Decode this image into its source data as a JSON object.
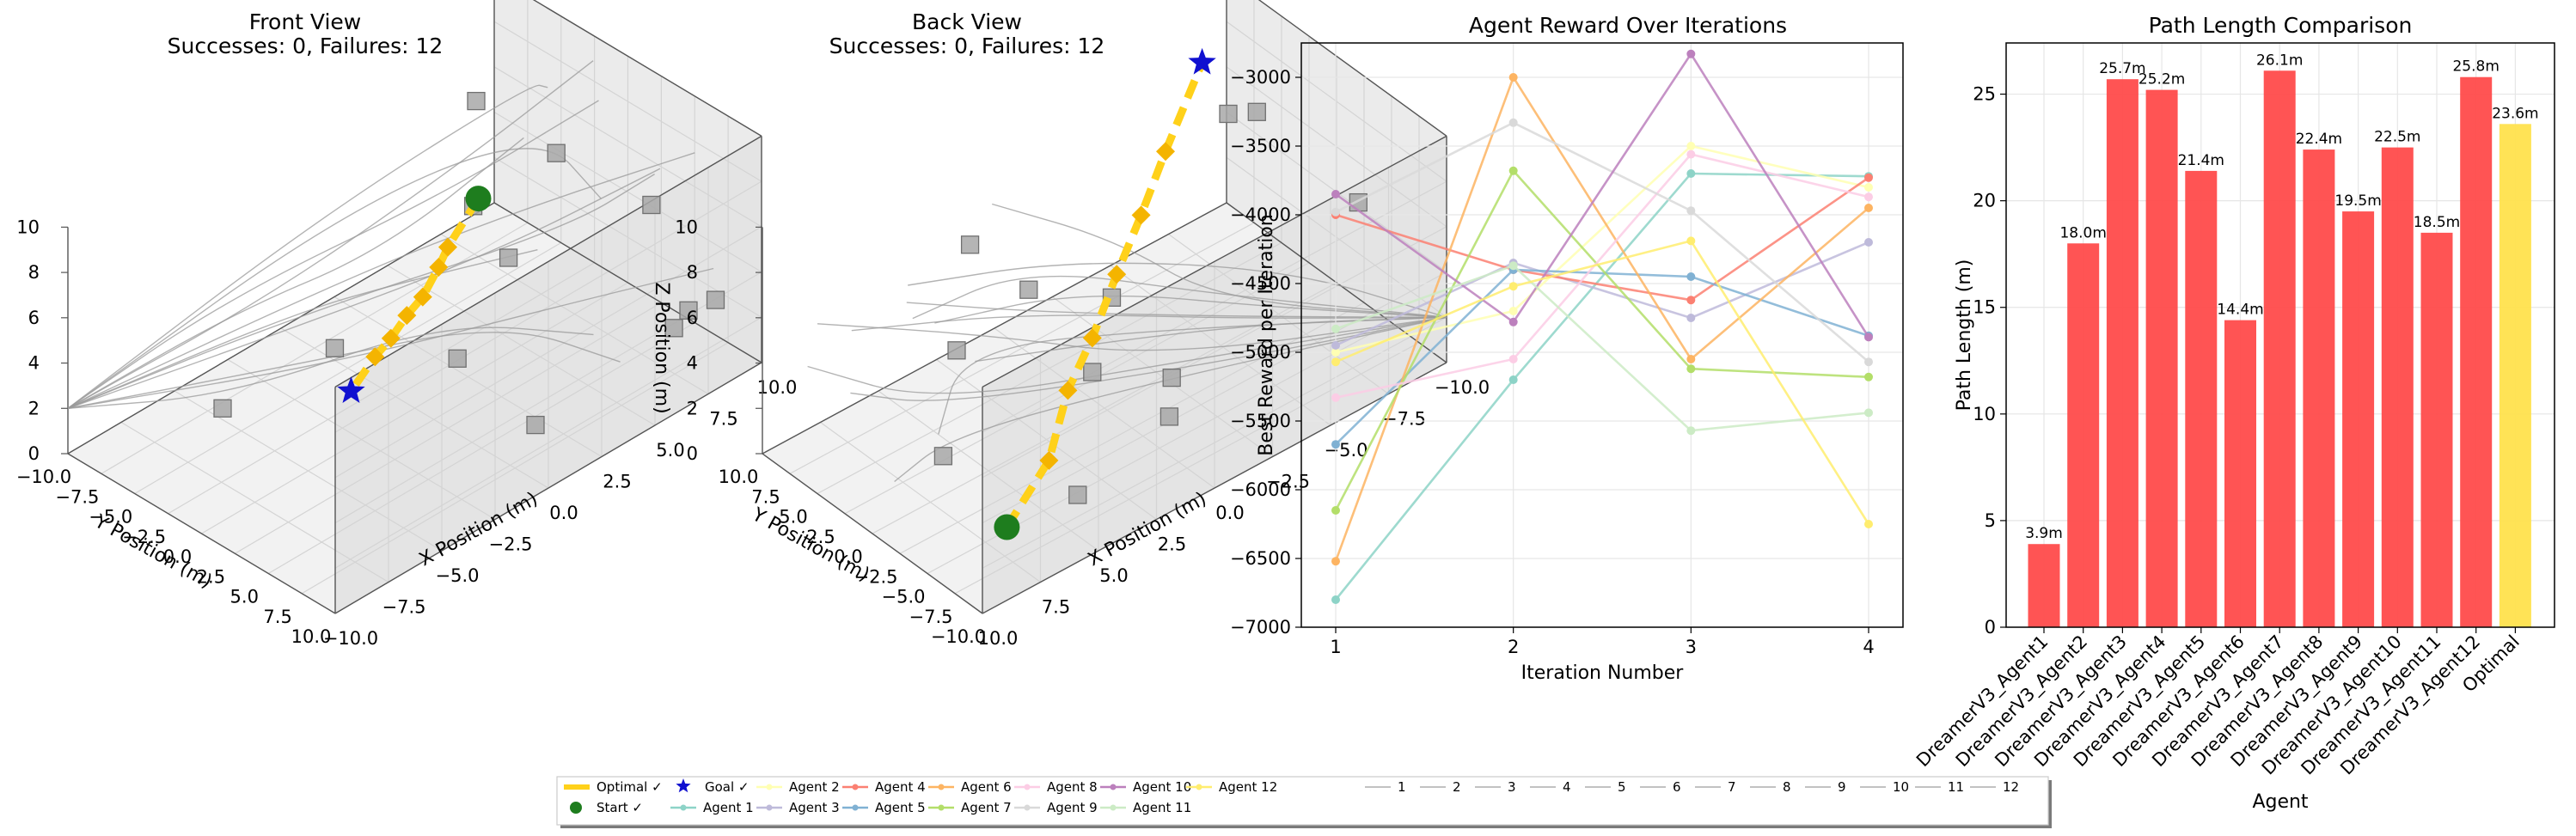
{
  "colors": {
    "optimal": "#FFD11A",
    "start": "#1E7D1E",
    "goal": "#1010D0",
    "bar_agent": "#FF4B4B",
    "bar_optimal": "#FFE14D",
    "obstacle": "#A8A8A8",
    "path_gray": "#9A9A9A",
    "series": [
      "#8DD3C7",
      "#FFFFB3",
      "#BEBADA",
      "#FB8072",
      "#80B1D3",
      "#FDB462",
      "#B3DE69",
      "#FCCDE5",
      "#D9D9D9",
      "#BC80BD",
      "#CCEBC5",
      "#FFED6F"
    ]
  },
  "panels3d": {
    "front": {
      "title_line1": "Front View",
      "title_line2": "Successes: 0, Failures: 12",
      "xaxis_label": "X Position (m)",
      "yaxis_label": "Y Position (m)",
      "zaxis_label": "",
      "x_ticks": [
        "−10.0",
        "−7.5",
        "−5.0",
        "−2.5",
        "0.0",
        "2.5",
        "5.0",
        "7.5",
        "10.0"
      ],
      "y_ticks": [
        "−10.0",
        "−7.5",
        "−5.0",
        "−2.5",
        "0.0",
        "2.5",
        "5.0",
        "7.5",
        "10.0"
      ],
      "z_ticks": [
        "0",
        "2",
        "4",
        "6",
        "8",
        "10"
      ]
    },
    "back": {
      "title_line1": "Back View",
      "title_line2": "Successes: 0, Failures: 12",
      "xaxis_label": "X Position (m)",
      "yaxis_label": "Y Position (m)",
      "zaxis_label": "Z Position (m)",
      "x_ticks": [
        "10.0",
        "7.5",
        "5.0",
        "2.5",
        "0.0",
        "−2.5",
        "−5.0",
        "−7.5",
        "−10.0"
      ],
      "y_ticks": [
        "10.0",
        "7.5",
        "5.0",
        "2.5",
        "0.0",
        "−2.5",
        "−5.0",
        "−7.5",
        "−10.0"
      ],
      "z_ticks": [
        "0",
        "2",
        "4",
        "6",
        "8",
        "10"
      ]
    }
  },
  "chart_data": [
    {
      "type": "scatter",
      "view": "front",
      "title": "Front View\nSuccesses: 0, Failures: 12",
      "xlabel": "X Position (m)",
      "ylabel": "Y Position (m)",
      "xlim": [
        -10,
        10
      ],
      "ylim": [
        -10,
        10
      ],
      "zlim": [
        0,
        10
      ],
      "start": [
        -8,
        -8,
        2
      ],
      "goal": [
        8,
        8,
        8
      ],
      "optimal_waypoints": [
        [
          -8,
          -8,
          2
        ],
        [
          -5,
          -5.5,
          2.4
        ],
        [
          -3,
          -3,
          3.5
        ],
        [
          -1,
          -1,
          4
        ],
        [
          1,
          1,
          5
        ],
        [
          3,
          3,
          5.8
        ],
        [
          5,
          5,
          6.8
        ],
        [
          8,
          8,
          8
        ]
      ]
    },
    {
      "type": "scatter",
      "view": "back",
      "title": "Back View\nSuccesses: 0, Failures: 12",
      "xlabel": "X Position (m)",
      "ylabel": "Y Position (m)",
      "zlabel": "Z Position (m)",
      "xlim": [
        -10,
        10
      ],
      "ylim": [
        -10,
        10
      ],
      "zlim": [
        0,
        10
      ]
    },
    {
      "type": "line",
      "title": "Agent Reward Over Iterations",
      "xlabel": "Iteration Number",
      "ylabel": "Best Reward per Iteration",
      "x": [
        1,
        2,
        3,
        4
      ],
      "x_ticks": [
        "1",
        "2",
        "3",
        "4"
      ],
      "ylim": [
        -7000,
        -2750
      ],
      "y_ticks": [
        -7000,
        -6500,
        -6000,
        -5500,
        -5000,
        -4500,
        -4000,
        -3500,
        -3000
      ],
      "y_tick_labels": [
        "−7000",
        "−6500",
        "−6000",
        "−5500",
        "−5000",
        "−4500",
        "−4000",
        "−3500",
        "−3000"
      ],
      "grid": true,
      "series": [
        {
          "name": "Agent 1",
          "values": [
            -6800,
            -5200,
            -3700,
            -3720
          ]
        },
        {
          "name": "Agent 2",
          "values": [
            -5000,
            -4700,
            -3500,
            -3800
          ]
        },
        {
          "name": "Agent 3",
          "values": [
            -4950,
            -4350,
            -4750,
            -4200
          ]
        },
        {
          "name": "Agent 4",
          "values": [
            -4000,
            -4400,
            -4620,
            -3730
          ]
        },
        {
          "name": "Agent 5",
          "values": [
            -5670,
            -4400,
            -4450,
            -4880
          ]
        },
        {
          "name": "Agent 6",
          "values": [
            -6520,
            -3000,
            -5050,
            -3950
          ]
        },
        {
          "name": "Agent 7",
          "values": [
            -6150,
            -3680,
            -5120,
            -5180
          ]
        },
        {
          "name": "Agent 8",
          "values": [
            -5330,
            -5050,
            -3560,
            -3870
          ]
        },
        {
          "name": "Agent 9",
          "values": [
            -3980,
            -3330,
            -3970,
            -5070
          ]
        },
        {
          "name": "Agent 10",
          "values": [
            -3850,
            -4780,
            -2830,
            -4890
          ]
        },
        {
          "name": "Agent 11",
          "values": [
            -4830,
            -4370,
            -5570,
            -5440
          ]
        },
        {
          "name": "Agent 12",
          "values": [
            -5070,
            -4520,
            -4190,
            -6250
          ]
        }
      ]
    },
    {
      "type": "bar",
      "title": "Path Length Comparison",
      "xlabel": "Agent",
      "ylabel": "Path Length (m)",
      "ylim": [
        0,
        27.4
      ],
      "y_ticks": [
        0,
        5,
        10,
        15,
        20,
        25
      ],
      "grid": true,
      "categories": [
        "DreamerV3_Agent1",
        "DreamerV3_Agent2",
        "DreamerV3_Agent3",
        "DreamerV3_Agent4",
        "DreamerV3_Agent5",
        "DreamerV3_Agent6",
        "DreamerV3_Agent7",
        "DreamerV3_Agent8",
        "DreamerV3_Agent9",
        "DreamerV3_Agent10",
        "DreamerV3_Agent11",
        "DreamerV3_Agent12",
        "Optimal"
      ],
      "values": [
        3.9,
        18.0,
        25.7,
        25.2,
        21.4,
        14.4,
        26.1,
        22.4,
        19.5,
        22.5,
        18.5,
        25.8,
        23.6
      ],
      "data_labels": [
        "3.9m",
        "18.0m",
        "25.7m",
        "25.2m",
        "21.4m",
        "14.4m",
        "26.1m",
        "22.4m",
        "19.5m",
        "22.5m",
        "18.5m",
        "25.8m",
        "23.6m"
      ]
    }
  ],
  "legend": {
    "optimal_label": "Optimal ✓",
    "start_label": "Start ✓",
    "goal_label": "Goal ✓",
    "agent_labels": [
      "Agent 1",
      "Agent 2",
      "Agent 3",
      "Agent 4",
      "Agent 5",
      "Agent 6",
      "Agent 7",
      "Agent 8",
      "Agent 9",
      "Agent 10",
      "Agent 11",
      "Agent 12"
    ],
    "path_labels": [
      "1",
      "2",
      "3",
      "4",
      "5",
      "6",
      "7",
      "8",
      "9",
      "10",
      "11",
      "12"
    ]
  }
}
